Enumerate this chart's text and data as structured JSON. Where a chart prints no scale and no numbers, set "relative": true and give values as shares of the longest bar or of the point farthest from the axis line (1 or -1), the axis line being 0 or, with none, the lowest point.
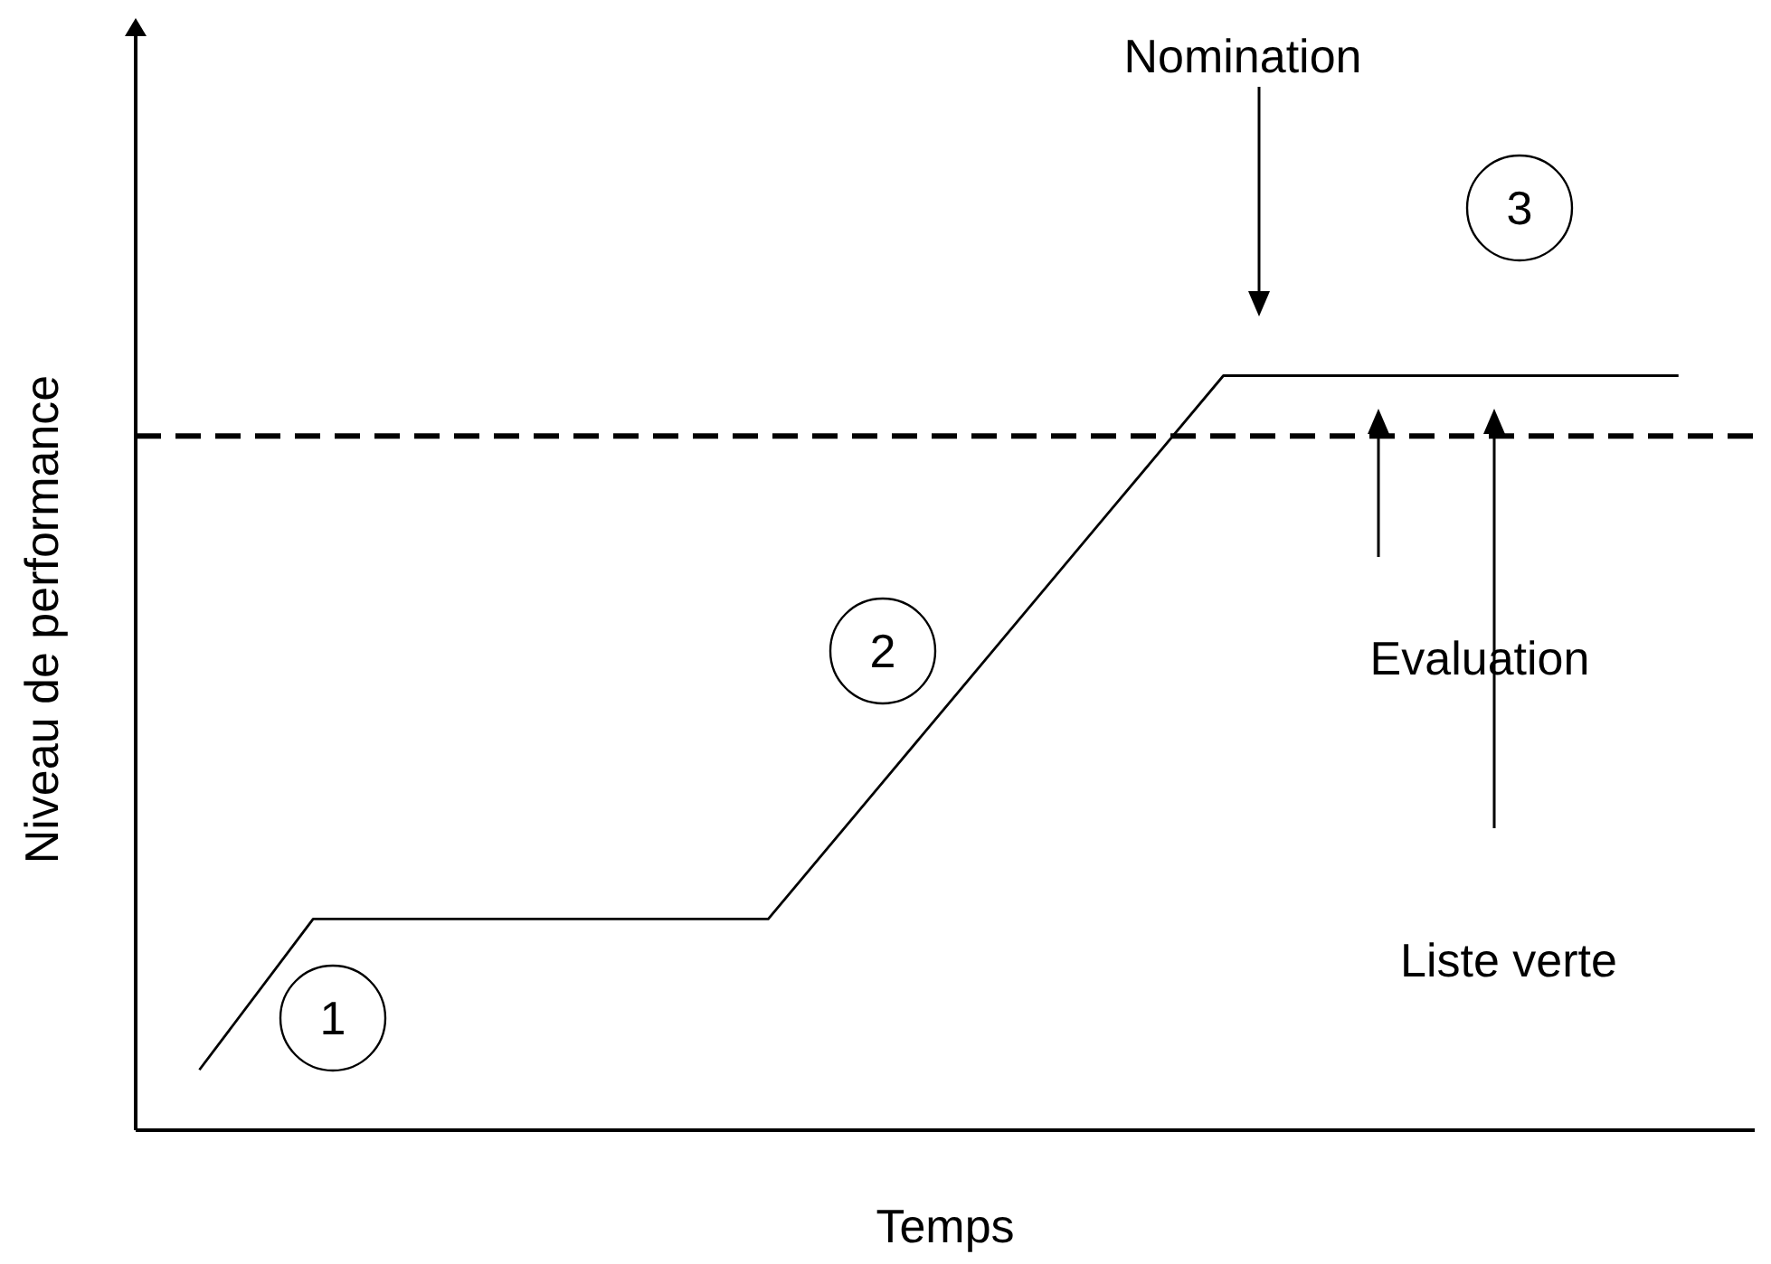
{
  "chart_data": {
    "type": "line",
    "relative": true,
    "xlabel": "Temps",
    "ylabel": "Niveau de performance",
    "categories": [
      null,
      null,
      null,
      null,
      null,
      null,
      null,
      null,
      null,
      null,
      null,
      null,
      null,
      null
    ],
    "values": [
      0.08,
      0.28,
      0.28,
      0.28,
      0.28,
      0.28,
      0.46,
      0.64,
      0.82,
      1,
      1,
      1,
      1,
      1
    ],
    "color": "#000000",
    "ref_lines": [
      {
        "axis": "y",
        "value": 0.92,
        "color": "#000000",
        "line_style": "dashed"
      }
    ],
    "annotations": [
      "Nomination",
      "Evaluation",
      "Liste verte",
      "1",
      "2",
      "3"
    ]
  }
}
